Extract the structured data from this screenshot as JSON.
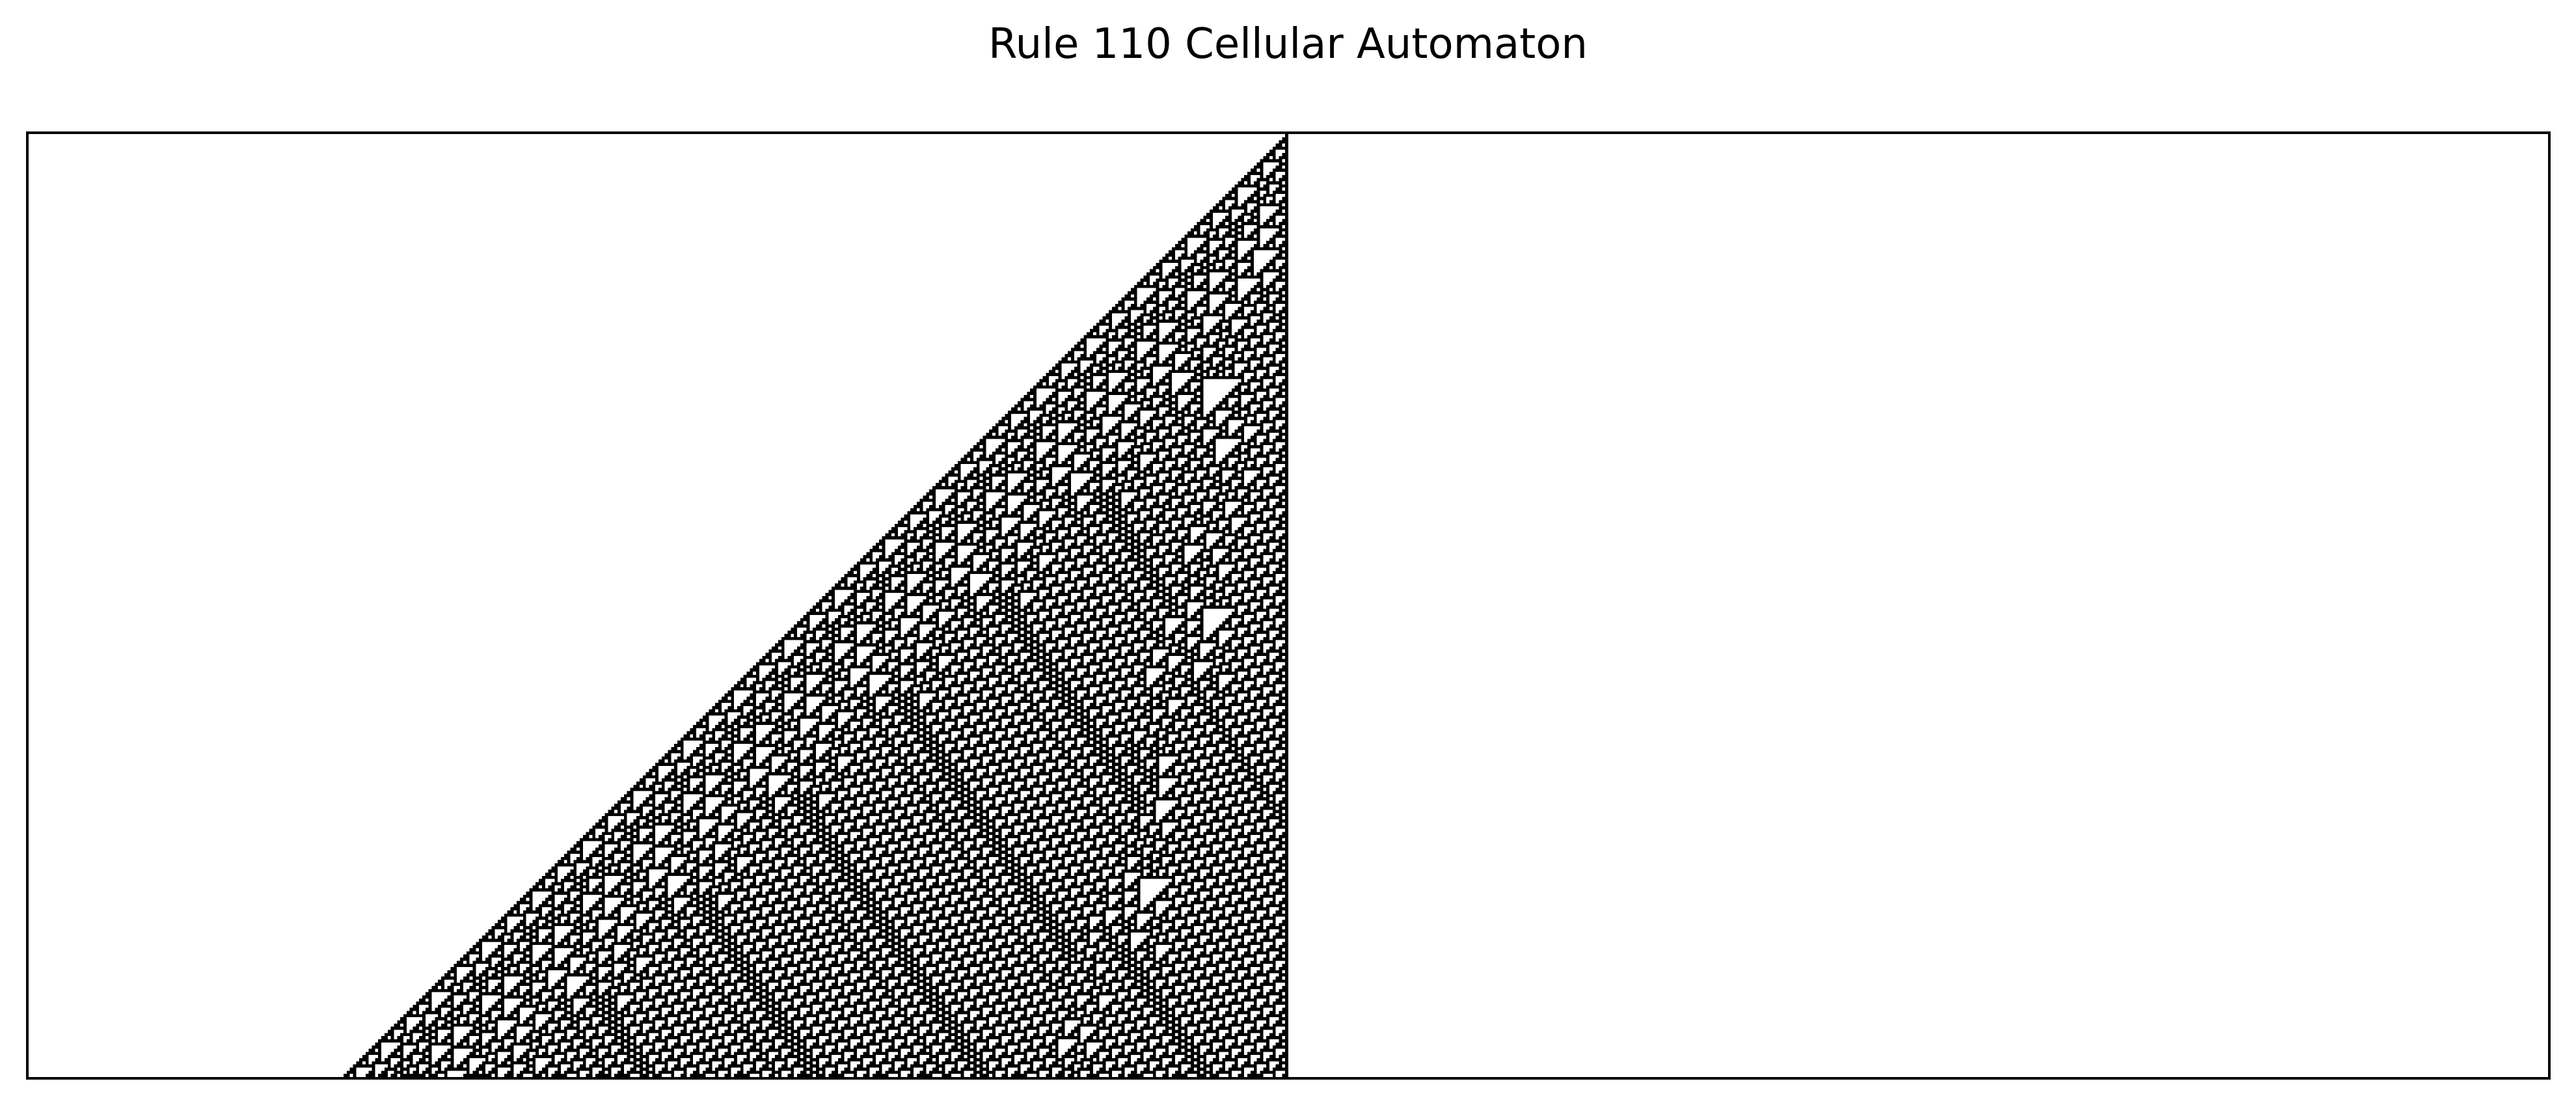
{
  "chart_data": {
    "type": "heatmap",
    "title": "Rule 110 Cellular Automaton",
    "rule": 110,
    "initial_condition": "single active cell at the rightmost position of the pattern",
    "generations": 300,
    "cells_per_row": 800,
    "seed_cell_index": 399,
    "xlabel": "",
    "ylabel": "",
    "axis_ticks": false,
    "grid": false,
    "colors": {
      "active": "#000000",
      "inactive": "#ffffff",
      "frame": "#000000"
    }
  }
}
